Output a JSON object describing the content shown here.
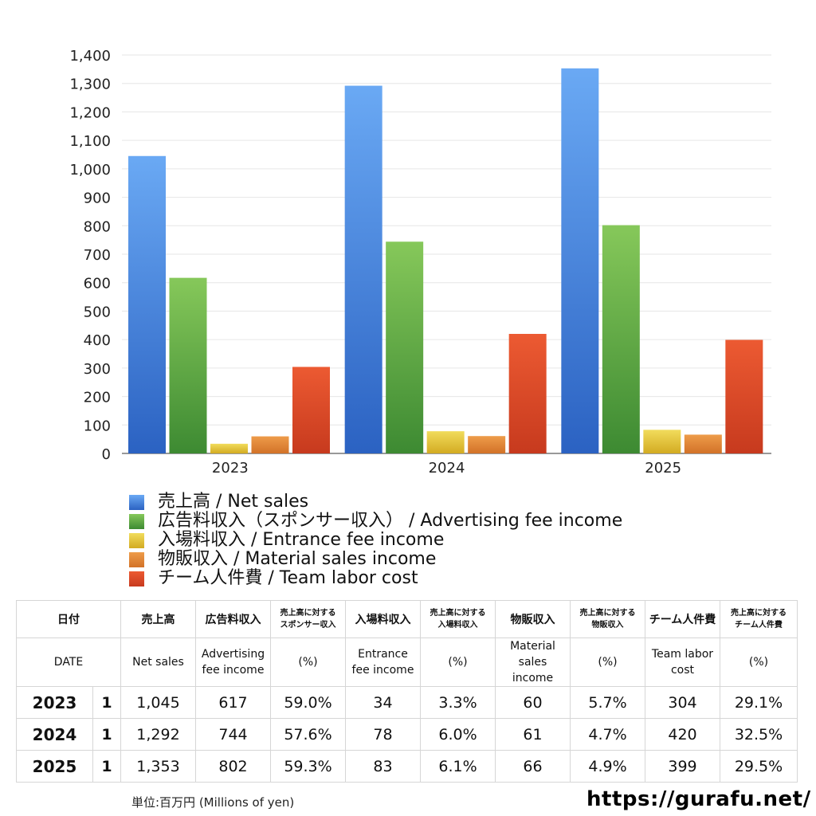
{
  "chart_data": {
    "type": "bar",
    "categories": [
      "2023",
      "2024",
      "2025"
    ],
    "series": [
      {
        "name": "売上高 / Net sales",
        "values": [
          1045,
          1292,
          1353
        ],
        "color_top": "#6aa9f4",
        "color_bottom": "#2b62c2"
      },
      {
        "name": "広告料収入（スポンサー収入） / Advertising fee income",
        "values": [
          617,
          744,
          802
        ],
        "color_top": "#86c85a",
        "color_bottom": "#3d8a32"
      },
      {
        "name": "入場料収入 / Entrance fee income",
        "values": [
          34,
          78,
          83
        ],
        "color_top": "#f1dc5c",
        "color_bottom": "#d3ab22"
      },
      {
        "name": "物販収入 / Material sales income",
        "values": [
          60,
          61,
          66
        ],
        "color_top": "#ee9c4a",
        "color_bottom": "#d27228"
      },
      {
        "name": "チーム人件費 / Team labor cost",
        "values": [
          304,
          420,
          399
        ],
        "color_top": "#ec5a32",
        "color_bottom": "#c73a1e"
      }
    ],
    "ylim": [
      0,
      1400
    ],
    "yticks": [
      "0",
      "100",
      "200",
      "300",
      "400",
      "500",
      "600",
      "700",
      "800",
      "900",
      "1,000",
      "1,100",
      "1,200",
      "1,300",
      "1,400"
    ],
    "grid": true,
    "legend": "bottom",
    "xlabel": "",
    "ylabel": ""
  },
  "table": {
    "header_jp": [
      "日付",
      "売上高",
      "広告料収入",
      "売上高に対する\nスポンサー収入",
      "入場料収入",
      "売上高に対する\n入場料収入",
      "物販収入",
      "売上高に対する\n物販収入",
      "チーム人件費",
      "売上高に対する\nチーム人件費"
    ],
    "header_en": [
      "DATE",
      "Net sales",
      "Advertising\nfee income",
      "(%)",
      "Entrance\nfee income",
      "(%)",
      "Material\nsales\nincome",
      "(%)",
      "Team labor\ncost",
      "(%)"
    ],
    "rows": [
      {
        "year": "2023",
        "q": "1",
        "cells": [
          "1,045",
          "617",
          "59.0%",
          "34",
          "3.3%",
          "60",
          "5.7%",
          "304",
          "29.1%"
        ]
      },
      {
        "year": "2024",
        "q": "1",
        "cells": [
          "1,292",
          "744",
          "57.6%",
          "78",
          "6.0%",
          "61",
          "4.7%",
          "420",
          "32.5%"
        ]
      },
      {
        "year": "2025",
        "q": "1",
        "cells": [
          "1,353",
          "802",
          "59.3%",
          "83",
          "6.1%",
          "66",
          "4.9%",
          "399",
          "29.5%"
        ]
      }
    ]
  },
  "footer": {
    "unit": "単位:百万円 (Millions of yen)",
    "site": "https://gurafu.net/"
  }
}
